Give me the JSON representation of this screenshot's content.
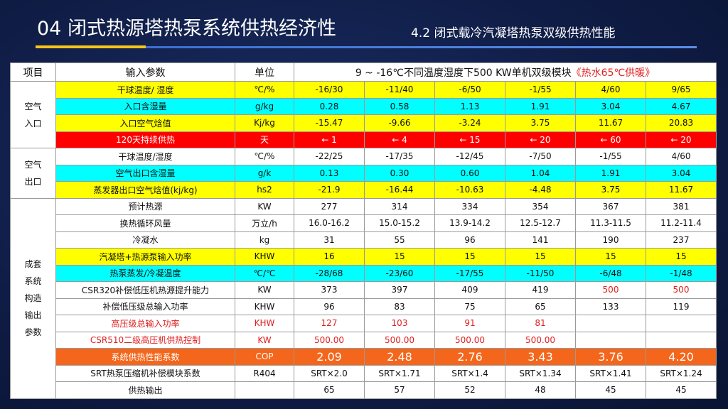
{
  "header": {
    "title": "04 闭式热源塔热泵系统供热经济性",
    "subtitle": "4.2 闭式载冷汽凝塔热泵双级供热性能"
  },
  "table": {
    "columns": [
      "项目",
      "输入参数",
      "单位"
    ],
    "condition": "9 ~ -16℃不同温度湿度下500 KW单机双级模块",
    "condition_note": "《热水65℃供暖》",
    "groups": [
      {
        "label": "空气\n入口",
        "rows": [
          {
            "param": "干球温度/ 湿度",
            "unit": "℃/%",
            "values": [
              "-16/30",
              "-11/40",
              "-6/50",
              "-1/55",
              "4/60",
              "9/65"
            ]
          },
          {
            "param": "入口含湿量",
            "unit": "g/kg",
            "values": [
              "0.28",
              "0.58",
              "1.13",
              "1.91",
              "3.04",
              "4.67"
            ]
          },
          {
            "param": "入口空气焓值",
            "unit": "Kj/kg",
            "values": [
              "-15.47",
              "-9.66",
              "-3.24",
              "3.75",
              "11.67",
              "20.83"
            ]
          },
          {
            "param": "120天持续供热",
            "unit": "天",
            "values": [
              "← 1",
              "← 4",
              "← 15",
              "← 20",
              "← 60",
              "← 20"
            ]
          }
        ]
      },
      {
        "label": "空气\n出口",
        "rows": [
          {
            "param": "干球温度/湿度",
            "unit": "℃/%",
            "values": [
              "-22/25",
              "-17/35",
              "-12/45",
              "-7/50",
              "-1/55",
              "4/60"
            ]
          },
          {
            "param": "空气出口含湿量",
            "unit": "g/k",
            "values": [
              "0.13",
              "0.30",
              "0.60",
              "1.04",
              "1.91",
              "3.04"
            ]
          },
          {
            "param": "蒸发器出口空气焓值(kj/kg)",
            "unit": "hs2",
            "values": [
              "-21.9",
              "-16.44",
              "-10.63",
              "-4.48",
              "3.75",
              "11.67"
            ]
          }
        ]
      },
      {
        "label": "成套\n系统\n构造\n输出\n参数",
        "rows": [
          {
            "param": "预计热源",
            "unit": "KW",
            "values": [
              "277",
              "314",
              "334",
              "354",
              "367",
              "381"
            ]
          },
          {
            "param": "换热循环风量",
            "unit": "万立/h",
            "values": [
              "16.0-16.2",
              "15.0-15.2",
              "13.9-14.2",
              "12.5-12.7",
              "11.3-11.5",
              "11.2-11.4"
            ]
          },
          {
            "param": "冷凝水",
            "unit": "kg",
            "values": [
              "31",
              "55",
              "96",
              "141",
              "190",
              "237"
            ]
          },
          {
            "param": "汽凝塔+热源泵输入功率",
            "unit": "KHW",
            "values": [
              "16",
              "15",
              "15",
              "15",
              "15",
              "15"
            ]
          },
          {
            "param": "热泵蒸发/冷凝温度",
            "unit": "℃/℃",
            "values": [
              "-28/68",
              "-23/60",
              "-17/55",
              "-11/50",
              "-6/48",
              "-1/48"
            ]
          },
          {
            "param": "CSR320补偿低压机热源提升能力",
            "unit": "KW",
            "values": [
              "373",
              "397",
              "409",
              "419",
              "500",
              "500"
            ]
          },
          {
            "param": "补偿低压级总输入功率",
            "unit": "KHW",
            "values": [
              "96",
              "83",
              "75",
              "65",
              "133",
              "119"
            ]
          },
          {
            "param": "高压级总输入功率",
            "unit": "KHW",
            "values": [
              "127",
              "103",
              "91",
              "81",
              null,
              null
            ]
          },
          {
            "param": "CSR510二级高压机供热控制",
            "unit": "KW",
            "values": [
              "500.00",
              "500.00",
              "500.00",
              "500.00",
              null,
              null
            ]
          },
          {
            "param": "系统供热性能系数",
            "unit": "COP",
            "values": [
              "2.09",
              "2.48",
              "2.76",
              "3.43",
              "3.76",
              "4.20"
            ]
          },
          {
            "param": "SRT热泵压缩机补偿模块系数",
            "unit": "R404",
            "values": [
              "SRT×2.0",
              "SRT×1.71",
              "SRT×1.4",
              "SRT×1.34",
              "SRT×1.41",
              "SRT×1.24"
            ]
          },
          {
            "param": "供热输出",
            "unit": null,
            "values": [
              "65",
              "57",
              "52",
              "48",
              "45",
              "45"
            ]
          }
        ]
      }
    ]
  }
}
